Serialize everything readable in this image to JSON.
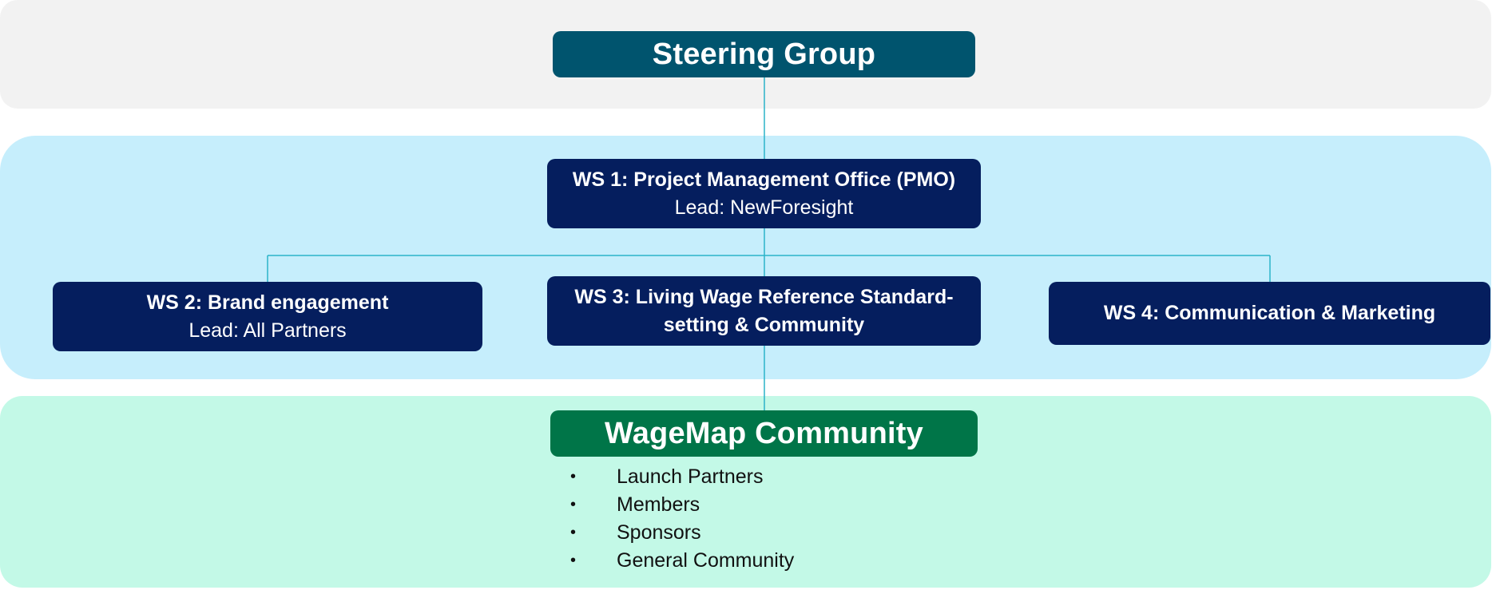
{
  "steering_group": {
    "title": "Steering Group"
  },
  "ws1": {
    "title": "WS 1: Project Management Office (PMO)",
    "lead": "Lead: NewForesight"
  },
  "ws2": {
    "title": "WS 2: Brand engagement",
    "lead": "Lead: All Partners"
  },
  "ws3": {
    "title": "WS 3: Living Wage Reference Standard-setting & Community"
  },
  "ws4": {
    "title": "WS 4: Communication & Marketing"
  },
  "community": {
    "title": "WageMap Community",
    "bullet": "•",
    "members": [
      "Launch Partners",
      "Members",
      "Sponsors",
      "General Community"
    ]
  },
  "colors": {
    "navy_box": "#051e5e",
    "teal_box": "#00546e",
    "green_box": "#007548",
    "connector": "#2bb3c9",
    "band_top": "#f2f2f2",
    "band_mid": "#c6eefc",
    "band_bottom": "#c3f9e7"
  }
}
